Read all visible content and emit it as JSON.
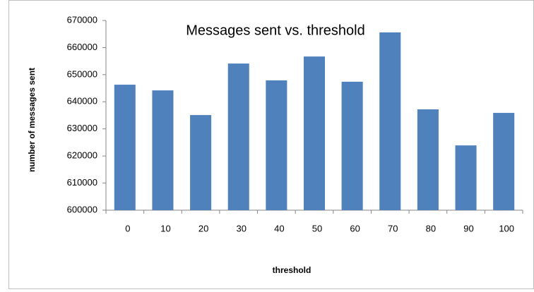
{
  "chart_data": {
    "type": "bar",
    "title": "Messages sent vs. threshold",
    "x_label": "threshold",
    "y_label": "number of messages sent",
    "categories": [
      "0",
      "10",
      "20",
      "30",
      "40",
      "50",
      "60",
      "70",
      "80",
      "90",
      "100"
    ],
    "values": [
      646300,
      644200,
      635100,
      654100,
      647900,
      656700,
      647400,
      665600,
      637200,
      623900,
      635900
    ],
    "color": "#4f81bd",
    "ylim": [
      600000,
      670000
    ],
    "yticks": [
      600000,
      610000,
      620000,
      630000,
      640000,
      650000,
      660000,
      670000
    ],
    "grid": false
  }
}
